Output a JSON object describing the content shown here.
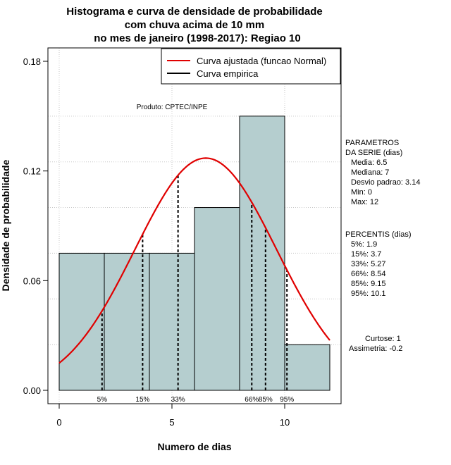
{
  "chart_data": {
    "type": "bar",
    "title_lines": [
      "Histograma e curva de densidade de probabilidade",
      "com chuva acima de 10 mm",
      "no mes de janeiro (1998-2017): Regiao 10"
    ],
    "xlabel": "Numero de dias",
    "ylabel": "Densidade de probabilidade",
    "xlim": [
      -1,
      12.5
    ],
    "ylim": [
      0,
      0.18
    ],
    "x_ticks": [
      0,
      5,
      10
    ],
    "y_ticks": [
      0.0,
      0.06,
      0.12,
      0.18
    ],
    "y_tick_labels": [
      "0.00",
      "0.06",
      "0.12",
      "0.18"
    ],
    "grid": true,
    "bins": [
      {
        "x0": 0,
        "x1": 2,
        "density": 0.075
      },
      {
        "x0": 2,
        "x1": 4,
        "density": 0.075
      },
      {
        "x0": 4,
        "x1": 6,
        "density": 0.075
      },
      {
        "x0": 6,
        "x1": 8,
        "density": 0.1
      },
      {
        "x0": 8,
        "x1": 10,
        "density": 0.15
      },
      {
        "x0": 10,
        "x1": 12,
        "density": 0.025
      }
    ],
    "bar_fill": "#b5cecf",
    "curve_color": "#e00000",
    "normal_curve": {
      "mean": 6.5,
      "sd": 3.14,
      "x_from": 0,
      "x_to": 12
    },
    "percentiles": [
      {
        "label": "5%",
        "x": 1.9
      },
      {
        "label": "15%",
        "x": 3.7
      },
      {
        "label": "33%",
        "x": 5.27
      },
      {
        "label": "66%",
        "x": 8.54
      },
      {
        "label": "85%",
        "x": 9.15
      },
      {
        "label": "95%",
        "x": 10.1
      }
    ],
    "legend": {
      "position": "top-right",
      "entries": [
        {
          "label": "Curva ajustada (funcao Normal)",
          "color": "#e00000"
        },
        {
          "label": "Curva empirica",
          "color": "#000000"
        }
      ]
    },
    "annotation": "Produto: CPTEC/INPE"
  },
  "parameters": {
    "header": [
      "PARAMETROS",
      "DA SERIE (dias)"
    ],
    "lines": [
      "Media: 6.5",
      "Mediana: 7",
      "Desvio padrao: 3.14",
      "Min: 0",
      "Max: 12"
    ]
  },
  "percentis_block": {
    "header": "PERCENTIS (dias)",
    "lines": [
      "5%: 1.9",
      "15%: 3.7",
      "33%: 5.27",
      "66%: 8.54",
      "85%: 9.15",
      "95%: 10.1"
    ]
  },
  "shape": {
    "curtose": "Curtose: 1",
    "assimetria": "Assimetria: -0.2"
  }
}
